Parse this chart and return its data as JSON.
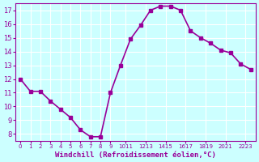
{
  "x": [
    0,
    1,
    2,
    3,
    4,
    5,
    6,
    7,
    8,
    9,
    10,
    11,
    12,
    13,
    14,
    15,
    16,
    17,
    18,
    19,
    20,
    21,
    22,
    23
  ],
  "y": [
    12.0,
    11.1,
    11.1,
    10.4,
    9.8,
    9.2,
    8.3,
    7.8,
    7.8,
    11.0,
    13.0,
    14.9,
    15.9,
    17.0,
    17.3,
    17.3,
    17.0,
    15.5,
    15.0,
    14.6,
    14.1,
    13.9,
    13.1,
    12.7
  ],
  "line_color": "#990099",
  "marker": "s",
  "marker_size": 3,
  "bg_color": "#ccffff",
  "grid_color": "#ffffff",
  "xlabel": "Windchill (Refroidissement éolien,°C)",
  "xlabel_color": "#990099",
  "tick_color": "#990099",
  "xlim": [
    -0.5,
    23.5
  ],
  "ylim": [
    7.5,
    17.5
  ],
  "yticks": [
    8,
    9,
    10,
    11,
    12,
    13,
    14,
    15,
    16,
    17
  ],
  "xtick_positions": [
    0,
    1,
    2,
    3,
    4,
    5,
    6,
    7,
    8,
    9,
    10.5,
    12.5,
    14.5,
    16.5,
    18.5,
    20.5,
    22.5
  ],
  "xtick_labels": [
    "0",
    "1",
    "2",
    "3",
    "4",
    "5",
    "6",
    "7",
    "8",
    "9",
    "1011",
    "1213",
    "1415",
    "1617",
    "1819",
    "2021",
    "2223"
  ],
  "line_width": 1.2
}
